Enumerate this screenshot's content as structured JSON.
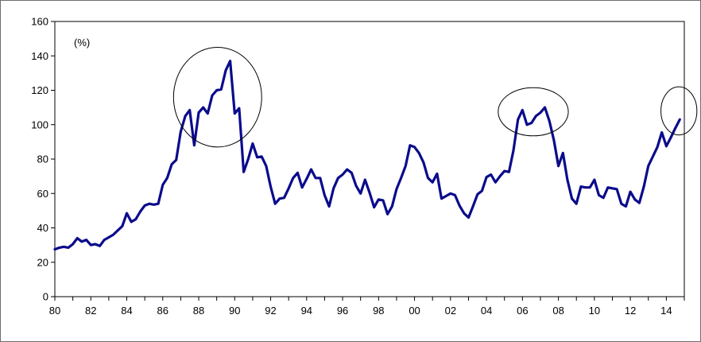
{
  "chart_data": {
    "type": "line",
    "title": "",
    "xlabel": "",
    "ylabel": "",
    "unit_label": "(%)",
    "ylim": [
      0,
      160
    ],
    "y_ticks": [
      0,
      20,
      40,
      60,
      80,
      100,
      120,
      140,
      160
    ],
    "y_tick_labels": [
      "0",
      "20",
      "40",
      "60",
      "80",
      "100",
      "120",
      "140",
      "160"
    ],
    "xlim": [
      1980.0,
      2015.0
    ],
    "x_ticks": [
      1980,
      1982,
      1984,
      1986,
      1988,
      1990,
      1992,
      1994,
      1996,
      1998,
      2000,
      2002,
      2004,
      2006,
      2008,
      2010,
      2012,
      2014
    ],
    "x_tick_labels": [
      "80",
      "82",
      "84",
      "86",
      "88",
      "90",
      "92",
      "94",
      "96",
      "98",
      "00",
      "02",
      "04",
      "06",
      "08",
      "10",
      "12",
      "14"
    ],
    "grid": false,
    "legend": "none",
    "line_color": "#0b0b8c",
    "series": [
      {
        "points": [
          [
            1980.0,
            27.5
          ],
          [
            1980.25,
            28.5
          ],
          [
            1980.5,
            29
          ],
          [
            1980.75,
            28.5
          ],
          [
            1981.0,
            30.5
          ],
          [
            1981.25,
            34
          ],
          [
            1981.5,
            32
          ],
          [
            1981.75,
            33
          ],
          [
            1982.0,
            30
          ],
          [
            1982.25,
            30.5
          ],
          [
            1982.5,
            29.5
          ],
          [
            1982.75,
            33
          ],
          [
            1983.0,
            34.5
          ],
          [
            1983.25,
            36
          ],
          [
            1983.5,
            38.5
          ],
          [
            1983.75,
            41
          ],
          [
            1984.0,
            48.5
          ],
          [
            1984.25,
            43.5
          ],
          [
            1984.5,
            45
          ],
          [
            1984.75,
            49.5
          ],
          [
            1985.0,
            53
          ],
          [
            1985.25,
            54
          ],
          [
            1985.5,
            53.5
          ],
          [
            1985.75,
            54
          ],
          [
            1986.0,
            65
          ],
          [
            1986.25,
            69
          ],
          [
            1986.5,
            77
          ],
          [
            1986.75,
            79.5
          ],
          [
            1987.0,
            96
          ],
          [
            1987.25,
            105
          ],
          [
            1987.5,
            108.5
          ],
          [
            1987.75,
            88
          ],
          [
            1988.0,
            107
          ],
          [
            1988.25,
            110
          ],
          [
            1988.5,
            106.5
          ],
          [
            1988.75,
            117
          ],
          [
            1989.0,
            120
          ],
          [
            1989.25,
            120.5
          ],
          [
            1989.5,
            131.5
          ],
          [
            1989.75,
            137
          ],
          [
            1990.0,
            106.5
          ],
          [
            1990.25,
            109.5
          ],
          [
            1990.5,
            72.5
          ],
          [
            1990.75,
            80
          ],
          [
            1991.0,
            89
          ],
          [
            1991.25,
            81
          ],
          [
            1991.5,
            81.5
          ],
          [
            1991.75,
            76
          ],
          [
            1992.0,
            64
          ],
          [
            1992.25,
            54
          ],
          [
            1992.5,
            57
          ],
          [
            1992.75,
            57.5
          ],
          [
            1993.0,
            63
          ],
          [
            1993.25,
            69
          ],
          [
            1993.5,
            72
          ],
          [
            1993.75,
            63.5
          ],
          [
            1994.0,
            68.5
          ],
          [
            1994.25,
            74
          ],
          [
            1994.5,
            69
          ],
          [
            1994.75,
            69
          ],
          [
            1995.0,
            59
          ],
          [
            1995.25,
            52.5
          ],
          [
            1995.5,
            63
          ],
          [
            1995.75,
            69
          ],
          [
            1996.0,
            71
          ],
          [
            1996.25,
            74
          ],
          [
            1996.5,
            72
          ],
          [
            1996.75,
            64.5
          ],
          [
            1997.0,
            60
          ],
          [
            1997.25,
            68
          ],
          [
            1997.5,
            60.5
          ],
          [
            1997.75,
            52
          ],
          [
            1998.0,
            56.5
          ],
          [
            1998.25,
            56
          ],
          [
            1998.5,
            48
          ],
          [
            1998.75,
            52.5
          ],
          [
            1999.0,
            62.5
          ],
          [
            1999.25,
            69
          ],
          [
            1999.5,
            76
          ],
          [
            1999.75,
            88
          ],
          [
            2000.0,
            87
          ],
          [
            2000.25,
            83.5
          ],
          [
            2000.5,
            78
          ],
          [
            2000.75,
            69
          ],
          [
            2001.0,
            66.5
          ],
          [
            2001.25,
            71.5
          ],
          [
            2001.5,
            57
          ],
          [
            2001.75,
            58.5
          ],
          [
            2002.0,
            60
          ],
          [
            2002.25,
            59
          ],
          [
            2002.5,
            53
          ],
          [
            2002.75,
            48.5
          ],
          [
            2003.0,
            46
          ],
          [
            2003.25,
            52.5
          ],
          [
            2003.5,
            59.5
          ],
          [
            2003.75,
            61.5
          ],
          [
            2004.0,
            69.5
          ],
          [
            2004.25,
            71
          ],
          [
            2004.5,
            66.5
          ],
          [
            2004.75,
            70
          ],
          [
            2005.0,
            73
          ],
          [
            2005.25,
            72.5
          ],
          [
            2005.5,
            85
          ],
          [
            2005.75,
            103
          ],
          [
            2006.0,
            108.5
          ],
          [
            2006.25,
            100
          ],
          [
            2006.5,
            101
          ],
          [
            2006.75,
            105
          ],
          [
            2007.0,
            107
          ],
          [
            2007.25,
            110
          ],
          [
            2007.5,
            102
          ],
          [
            2007.75,
            91
          ],
          [
            2008.0,
            76
          ],
          [
            2008.25,
            83.5
          ],
          [
            2008.5,
            68
          ],
          [
            2008.75,
            57
          ],
          [
            2009.0,
            54
          ],
          [
            2009.25,
            64
          ],
          [
            2009.5,
            63.5
          ],
          [
            2009.75,
            63.5
          ],
          [
            2010.0,
            68
          ],
          [
            2010.25,
            59
          ],
          [
            2010.5,
            57.5
          ],
          [
            2010.75,
            63.5
          ],
          [
            2011.0,
            63
          ],
          [
            2011.25,
            62.5
          ],
          [
            2011.5,
            54
          ],
          [
            2011.75,
            52.5
          ],
          [
            2012.0,
            61
          ],
          [
            2012.25,
            56.5
          ],
          [
            2012.5,
            54.5
          ],
          [
            2012.75,
            64
          ],
          [
            2013.0,
            76
          ],
          [
            2013.25,
            81.5
          ],
          [
            2013.5,
            87
          ],
          [
            2013.75,
            95.5
          ],
          [
            2014.0,
            87.5
          ],
          [
            2014.25,
            92.5
          ],
          [
            2014.5,
            98
          ],
          [
            2014.75,
            103
          ]
        ]
      }
    ],
    "annotations": [
      {
        "shape": "ellipse",
        "center": [
          1989.05,
          116
        ],
        "radius_x": 2.45,
        "radius_y": 29
      },
      {
        "shape": "ellipse",
        "center": [
          2006.6,
          107.5
        ],
        "radius_x": 1.95,
        "radius_y": 14
      },
      {
        "shape": "ellipse",
        "center": [
          2014.7,
          108
        ],
        "radius_x": 1.0,
        "radius_y": 14
      }
    ]
  }
}
